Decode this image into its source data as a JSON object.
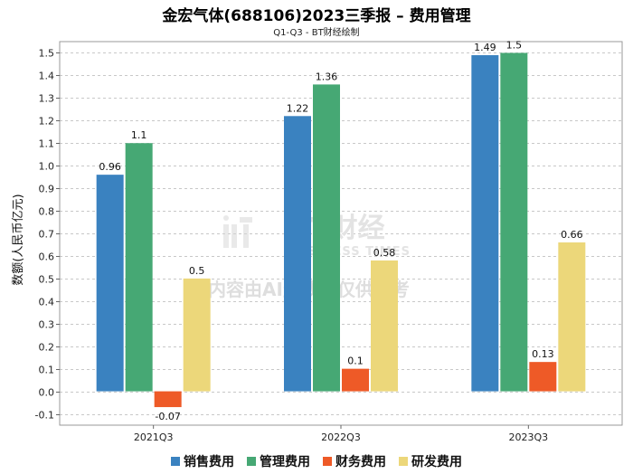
{
  "chart_data": {
    "type": "bar",
    "title": "金宏气体(688106)2023三季报 – 费用管理",
    "subtitle": "Q1-Q3 - BT财经绘制",
    "xlabel": "",
    "ylabel": "数额(人民币亿元)",
    "ylim": [
      -0.15,
      1.55
    ],
    "yticks": [
      "-0.1",
      "0.0",
      "0.1",
      "0.2",
      "0.3",
      "0.4",
      "0.5",
      "0.6",
      "0.7",
      "0.8",
      "0.9",
      "1.0",
      "1.1",
      "1.2",
      "1.3",
      "1.4",
      "1.5"
    ],
    "grid": true,
    "legend_position": "bottom",
    "categories": [
      "2021Q3",
      "2022Q3",
      "2023Q3"
    ],
    "series": [
      {
        "name": "销售费用",
        "color": "#3a82c0",
        "values": [
          0.96,
          1.22,
          1.49
        ],
        "labels": [
          "0.96",
          "1.22",
          "1.49"
        ]
      },
      {
        "name": "管理费用",
        "color": "#46a874",
        "values": [
          1.1,
          1.36,
          1.5
        ],
        "labels": [
          "1.1",
          "1.36",
          "1.5"
        ]
      },
      {
        "name": "财务费用",
        "color": "#ee5a27",
        "values": [
          -0.07,
          0.1,
          0.13
        ],
        "labels": [
          "-0.07",
          "0.1",
          "0.13"
        ]
      },
      {
        "name": "研发费用",
        "color": "#ecd77a",
        "values": [
          0.5,
          0.58,
          0.66
        ],
        "labels": [
          "0.5",
          "0.58",
          "0.66"
        ]
      }
    ]
  },
  "watermark": {
    "brand": "BT财经",
    "brand_en": "BUSINESS TIMES",
    "note": "内容由AI生成，仅供参考"
  }
}
